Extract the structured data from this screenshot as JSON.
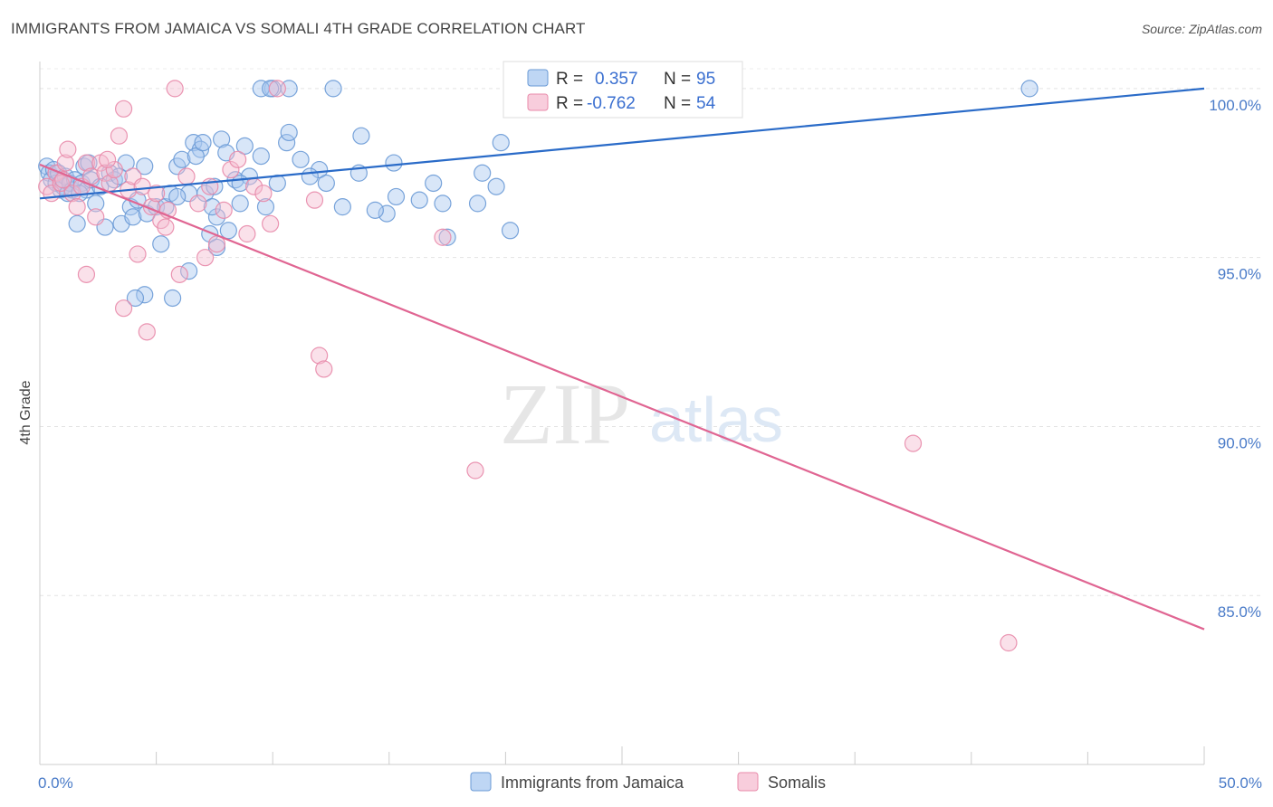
{
  "header": {
    "title": "IMMIGRANTS FROM JAMAICA VS SOMALI 4TH GRADE CORRELATION CHART",
    "source": "Source: ZipAtlas.com"
  },
  "watermark": {
    "zip": "ZIP",
    "atlas": "atlas"
  },
  "colors": {
    "jamaica_fill": "#a8c8f0",
    "jamaica_stroke": "#6a9ad6",
    "jamaica_line": "#2a6bc8",
    "somali_fill": "#f5bcd0",
    "somali_stroke": "#e88aaa",
    "somali_line": "#e06592",
    "grid": "#e3e3e3",
    "tick_label": "#4a7bc8"
  },
  "chart_data": {
    "type": "scatter",
    "ylabel": "4th Grade",
    "xlim": [
      0,
      50
    ],
    "ylim": [
      80.0,
      100.8
    ],
    "x_tick_labels": [
      {
        "value": 0,
        "label": "0.0%"
      },
      {
        "value": 50,
        "label": "50.0%"
      }
    ],
    "y_ticks": [
      {
        "value": 100,
        "label": "100.0%"
      },
      {
        "value": 95,
        "label": "95.0%"
      },
      {
        "value": 90,
        "label": "90.0%"
      },
      {
        "value": 85,
        "label": "85.0%"
      }
    ],
    "grid": true,
    "legend_position": "top-center",
    "stats": [
      {
        "r_label": "R =",
        "r_value": "0.357",
        "n_label": "N =",
        "n_value": "95"
      },
      {
        "r_label": "R =",
        "r_value": "-0.762",
        "n_label": "N =",
        "n_value": "54"
      }
    ],
    "series": [
      {
        "name": "Immigrants from Jamaica",
        "trend": [
          [
            0,
            96.75
          ],
          [
            50,
            100.0
          ]
        ],
        "points": [
          [
            0.3,
            97.7
          ],
          [
            0.4,
            97.5
          ],
          [
            0.5,
            97.3
          ],
          [
            0.6,
            97.6
          ],
          [
            0.7,
            97.2
          ],
          [
            0.8,
            97.5
          ],
          [
            0.9,
            97.0
          ],
          [
            1.0,
            97.1
          ],
          [
            1.1,
            97.4
          ],
          [
            1.2,
            96.9
          ],
          [
            1.3,
            97.2
          ],
          [
            1.4,
            97.0
          ],
          [
            1.5,
            97.3
          ],
          [
            1.6,
            96.0
          ],
          [
            1.8,
            97.2
          ],
          [
            1.9,
            97.7
          ],
          [
            2.0,
            97.0
          ],
          [
            2.2,
            97.3
          ],
          [
            2.4,
            96.6
          ],
          [
            2.6,
            97.1
          ],
          [
            2.8,
            95.9
          ],
          [
            3.0,
            97.5
          ],
          [
            3.2,
            97.3
          ],
          [
            3.5,
            96.0
          ],
          [
            3.7,
            97.8
          ],
          [
            3.9,
            96.5
          ],
          [
            4.0,
            96.2
          ],
          [
            4.2,
            96.7
          ],
          [
            4.5,
            97.7
          ],
          [
            4.6,
            96.3
          ],
          [
            5.0,
            96.5
          ],
          [
            5.2,
            95.4
          ],
          [
            5.4,
            96.5
          ],
          [
            5.6,
            96.9
          ],
          [
            5.9,
            97.7
          ],
          [
            6.1,
            97.9
          ],
          [
            6.4,
            96.9
          ],
          [
            6.6,
            98.4
          ],
          [
            6.9,
            98.2
          ],
          [
            7.1,
            96.9
          ],
          [
            7.3,
            95.7
          ],
          [
            7.5,
            97.1
          ],
          [
            7.6,
            96.2
          ],
          [
            7.8,
            98.5
          ],
          [
            8.0,
            98.1
          ],
          [
            8.1,
            95.8
          ],
          [
            8.4,
            97.3
          ],
          [
            8.6,
            96.6
          ],
          [
            8.8,
            98.3
          ],
          [
            9.0,
            97.4
          ],
          [
            9.5,
            98.0
          ],
          [
            9.7,
            96.5
          ],
          [
            10.2,
            97.2
          ],
          [
            10.6,
            98.4
          ],
          [
            10.7,
            98.7
          ],
          [
            11.2,
            97.9
          ],
          [
            12.0,
            97.6
          ],
          [
            12.3,
            97.2
          ],
          [
            13.0,
            96.5
          ],
          [
            13.7,
            97.5
          ],
          [
            13.8,
            98.6
          ],
          [
            14.9,
            96.3
          ],
          [
            15.2,
            97.8
          ],
          [
            15.3,
            96.8
          ],
          [
            16.3,
            96.7
          ],
          [
            16.9,
            97.2
          ],
          [
            17.3,
            96.6
          ],
          [
            18.8,
            96.6
          ],
          [
            19.0,
            97.5
          ],
          [
            19.6,
            97.1
          ],
          [
            19.8,
            98.4
          ],
          [
            20.2,
            95.8
          ],
          [
            4.5,
            93.9
          ],
          [
            5.7,
            93.8
          ],
          [
            4.1,
            93.8
          ],
          [
            6.4,
            94.6
          ],
          [
            7.6,
            95.3
          ],
          [
            10.0,
            100.0
          ],
          [
            9.5,
            100.0
          ],
          [
            9.9,
            100.0
          ],
          [
            10.7,
            100.0
          ],
          [
            12.6,
            100.0
          ],
          [
            20.4,
            100.0
          ],
          [
            42.5,
            100.0
          ],
          [
            5.9,
            96.8
          ],
          [
            6.7,
            98.0
          ],
          [
            7.4,
            96.5
          ],
          [
            8.6,
            97.2
          ],
          [
            3.4,
            97.4
          ],
          [
            2.1,
            97.8
          ],
          [
            1.7,
            96.9
          ],
          [
            11.6,
            97.4
          ],
          [
            14.4,
            96.4
          ],
          [
            17.5,
            95.6
          ],
          [
            7.0,
            98.4
          ]
        ]
      },
      {
        "name": "Somalis",
        "trend": [
          [
            0,
            97.75
          ],
          [
            50,
            84.0
          ]
        ],
        "points": [
          [
            0.3,
            97.1
          ],
          [
            0.5,
            96.9
          ],
          [
            0.7,
            97.5
          ],
          [
            0.9,
            97.2
          ],
          [
            1.1,
            97.8
          ],
          [
            1.2,
            98.2
          ],
          [
            1.4,
            96.9
          ],
          [
            1.6,
            96.5
          ],
          [
            1.8,
            97.1
          ],
          [
            2.0,
            97.8
          ],
          [
            2.2,
            97.4
          ],
          [
            2.4,
            96.2
          ],
          [
            2.6,
            97.8
          ],
          [
            2.8,
            97.5
          ],
          [
            3.0,
            97.2
          ],
          [
            3.2,
            97.6
          ],
          [
            3.4,
            98.6
          ],
          [
            3.6,
            99.4
          ],
          [
            3.8,
            97.0
          ],
          [
            4.0,
            97.4
          ],
          [
            4.2,
            95.1
          ],
          [
            4.4,
            97.1
          ],
          [
            4.6,
            92.8
          ],
          [
            4.8,
            96.5
          ],
          [
            5.0,
            96.9
          ],
          [
            5.2,
            96.1
          ],
          [
            5.4,
            95.9
          ],
          [
            5.8,
            100.0
          ],
          [
            6.0,
            94.5
          ],
          [
            6.3,
            97.4
          ],
          [
            6.8,
            96.6
          ],
          [
            7.1,
            95.0
          ],
          [
            7.3,
            97.1
          ],
          [
            7.6,
            95.4
          ],
          [
            7.9,
            96.4
          ],
          [
            8.2,
            97.6
          ],
          [
            8.5,
            97.9
          ],
          [
            8.9,
            95.7
          ],
          [
            9.2,
            97.1
          ],
          [
            9.6,
            96.9
          ],
          [
            9.9,
            96.0
          ],
          [
            10.2,
            100.0
          ],
          [
            11.8,
            96.7
          ],
          [
            12.0,
            92.1
          ],
          [
            12.2,
            91.7
          ],
          [
            2.0,
            94.5
          ],
          [
            3.6,
            93.5
          ],
          [
            17.3,
            95.6
          ],
          [
            18.7,
            88.7
          ],
          [
            37.5,
            89.5
          ],
          [
            41.6,
            83.6
          ],
          [
            1.0,
            97.3
          ],
          [
            2.9,
            97.9
          ],
          [
            5.5,
            96.4
          ]
        ]
      }
    ]
  }
}
